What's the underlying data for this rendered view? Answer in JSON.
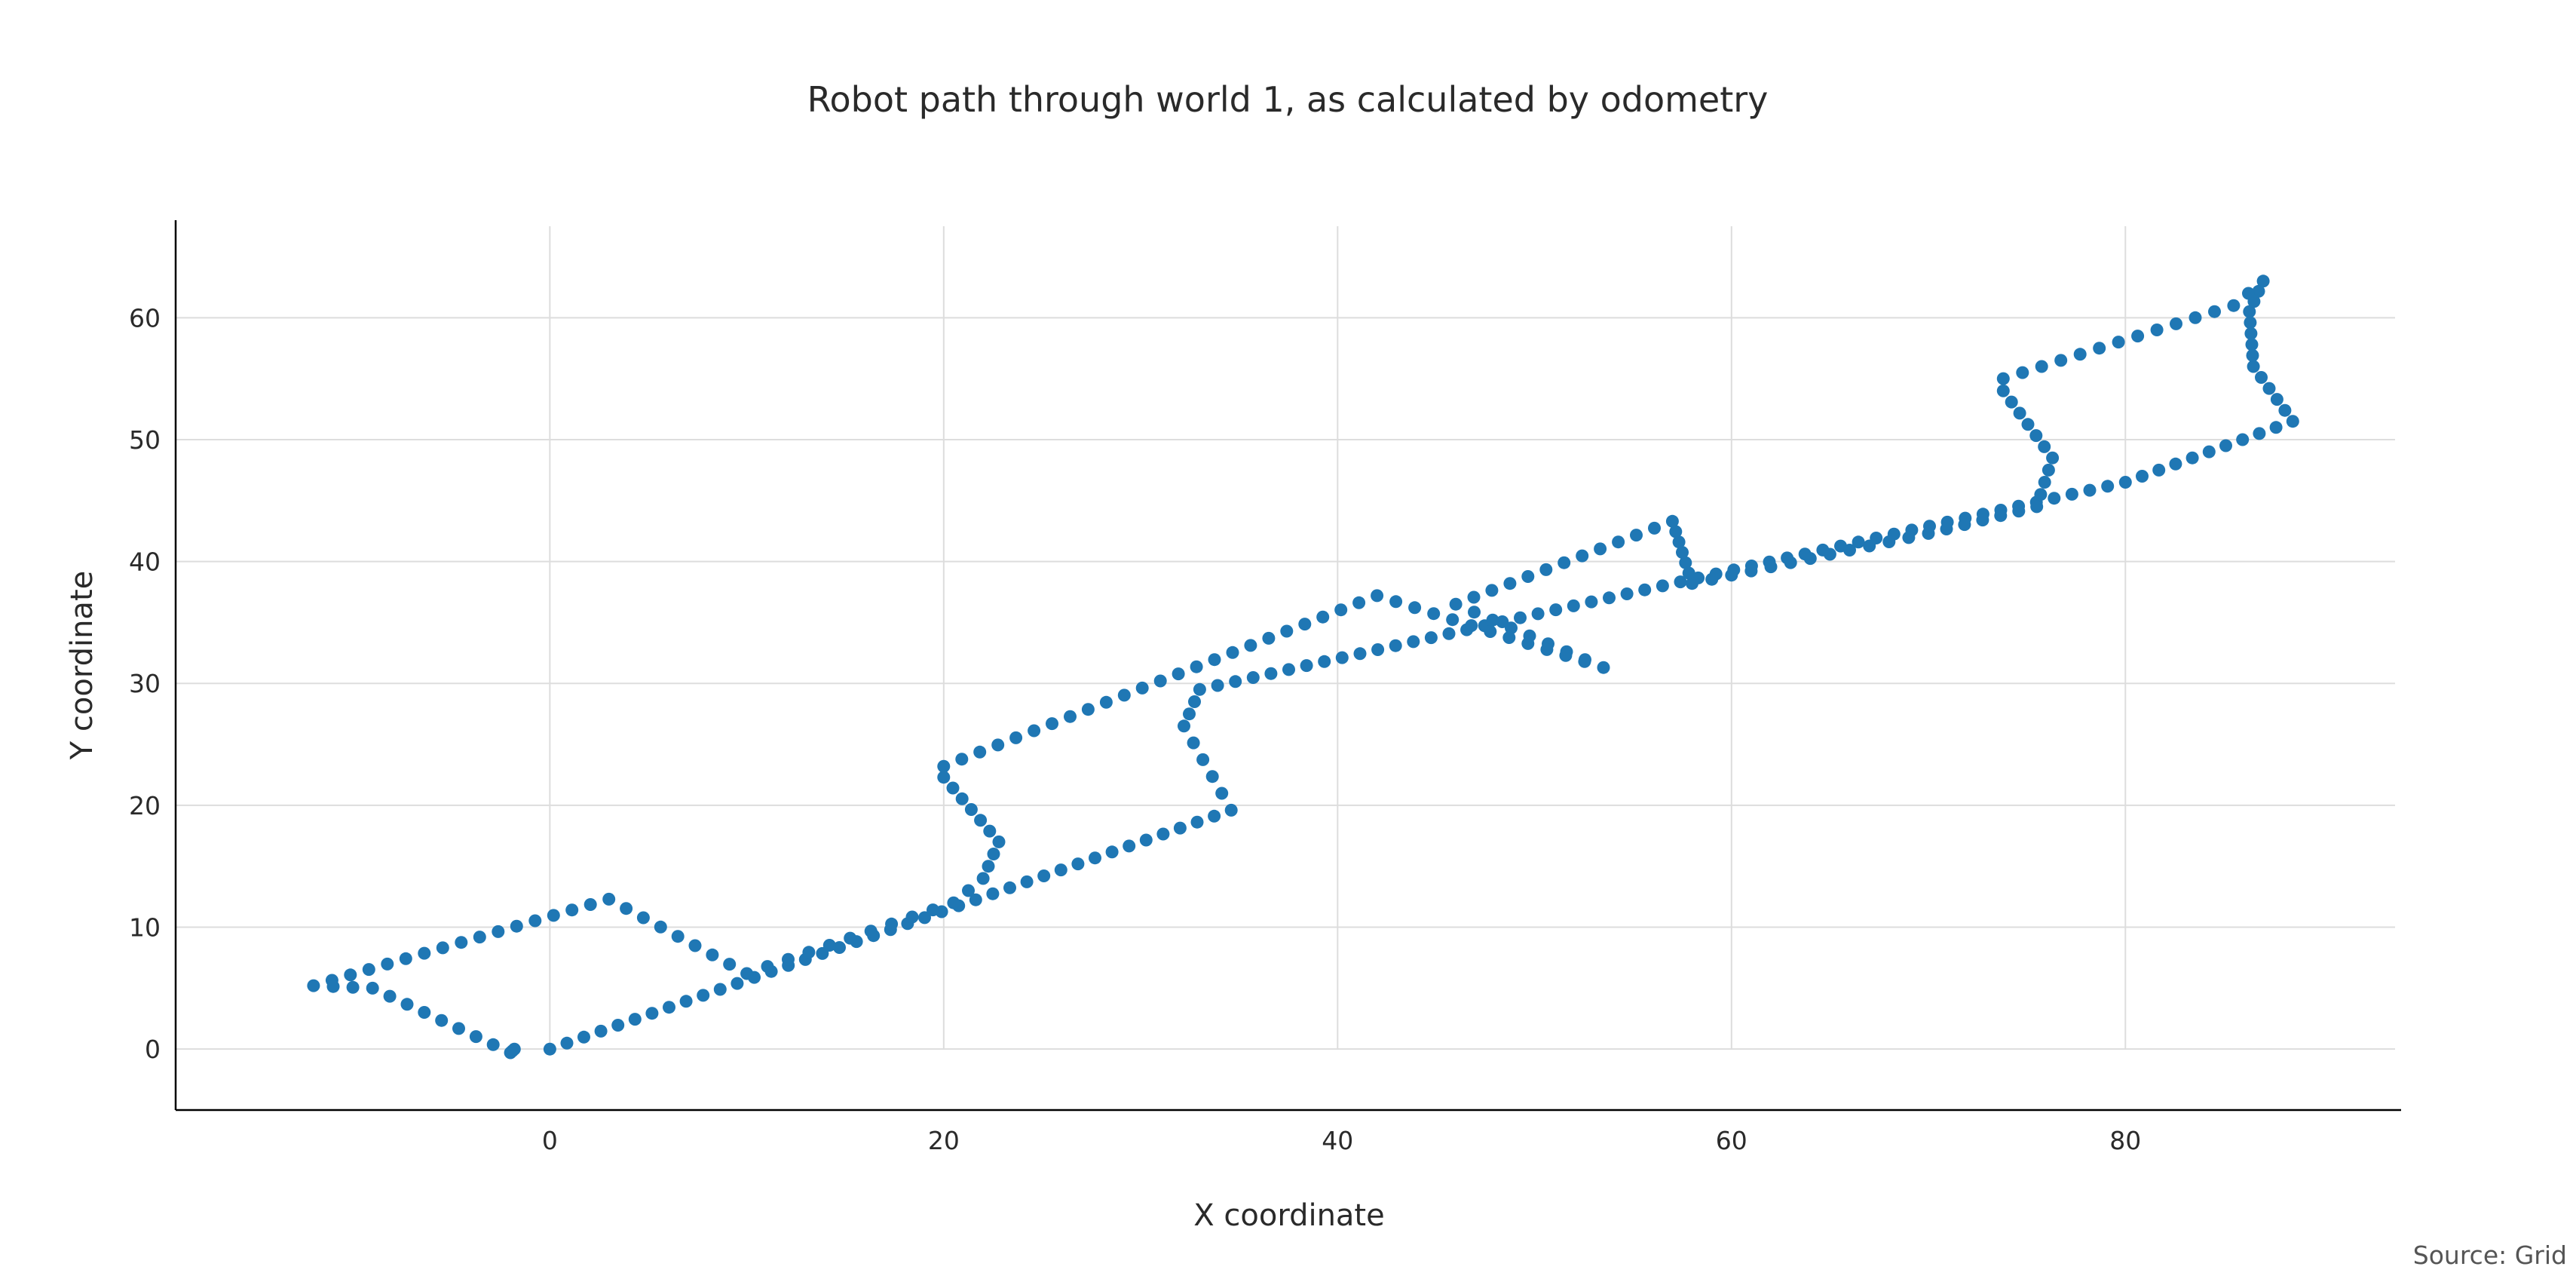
{
  "chart_data": {
    "type": "scatter",
    "title": "Robot path through world 1, as calculated by odometry",
    "xlabel": "X coordinate",
    "ylabel": "Y coordinate",
    "source": "Source: Grid",
    "xlim": [
      -19,
      94
    ],
    "ylim": [
      -5,
      68
    ],
    "x_ticks": [
      0,
      20,
      40,
      60,
      80
    ],
    "y_ticks": [
      0,
      10,
      20,
      30,
      40,
      50,
      60
    ],
    "x_tick_labels": [
      "0",
      "20",
      "40",
      "60",
      "80"
    ],
    "y_tick_labels": [
      "0",
      "10",
      "20",
      "30",
      "40",
      "50",
      "60"
    ],
    "grid": true,
    "color": "#1f77b4",
    "waypoints": [
      [
        0,
        0
      ],
      [
        34.6,
        19.6
      ],
      [
        32.2,
        26.5
      ],
      [
        33.0,
        29.5
      ],
      [
        80.0,
        46.5
      ],
      [
        88.5,
        51.5
      ],
      [
        86.5,
        56.0
      ],
      [
        86.3,
        60.5
      ],
      [
        87.0,
        63.0
      ],
      [
        85.5,
        61.0
      ],
      [
        73.8,
        55.0
      ],
      [
        73.8,
        54.0
      ],
      [
        76.3,
        48.5
      ],
      [
        75.5,
        44.5
      ],
      [
        70.0,
        42.3
      ],
      [
        58.0,
        38.2
      ],
      [
        57.0,
        43.3
      ],
      [
        46.0,
        36.5
      ],
      [
        53.5,
        31.3
      ],
      [
        42.0,
        37.2
      ],
      [
        20.0,
        23.2
      ],
      [
        20.0,
        22.3
      ],
      [
        22.8,
        17.0
      ],
      [
        22.0,
        14.0
      ],
      [
        20.5,
        12.0
      ],
      [
        10.0,
        6.2
      ],
      [
        3.0,
        12.3
      ],
      [
        -12.0,
        5.2
      ],
      [
        -9.0,
        5.0
      ],
      [
        -2.0,
        -0.3
      ],
      [
        -1.8,
        0.0
      ]
    ],
    "segment_point_counts": [
      40,
      5,
      3,
      52,
      10,
      5,
      5,
      3,
      2,
      12,
      1,
      6,
      4,
      6,
      12,
      6,
      12,
      8,
      12,
      24,
      1,
      6,
      3,
      2,
      10,
      8,
      16,
      3,
      8,
      2
    ]
  }
}
